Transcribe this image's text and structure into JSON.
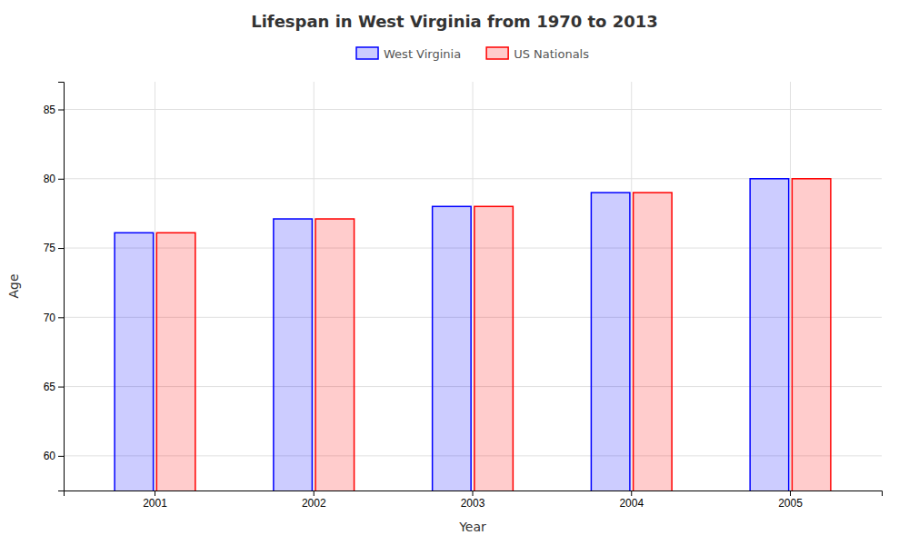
{
  "chart_data": {
    "type": "bar",
    "title": "Lifespan in West Virginia from 1970 to 2013",
    "xlabel": "Year",
    "ylabel": "Age",
    "categories": [
      "2001",
      "2002",
      "2003",
      "2004",
      "2005"
    ],
    "series": [
      {
        "name": "West Virginia",
        "color": "#0000ff",
        "values": [
          76.1,
          77.1,
          78.0,
          79.0,
          80.0
        ]
      },
      {
        "name": "US Nationals",
        "color": "#ff0000",
        "values": [
          76.1,
          77.1,
          78.0,
          79.0,
          80.0
        ]
      }
    ],
    "ylim": [
      57.5,
      87
    ],
    "yticks": [
      60,
      65,
      70,
      75,
      80,
      85
    ],
    "grid": true,
    "legend": "top"
  }
}
